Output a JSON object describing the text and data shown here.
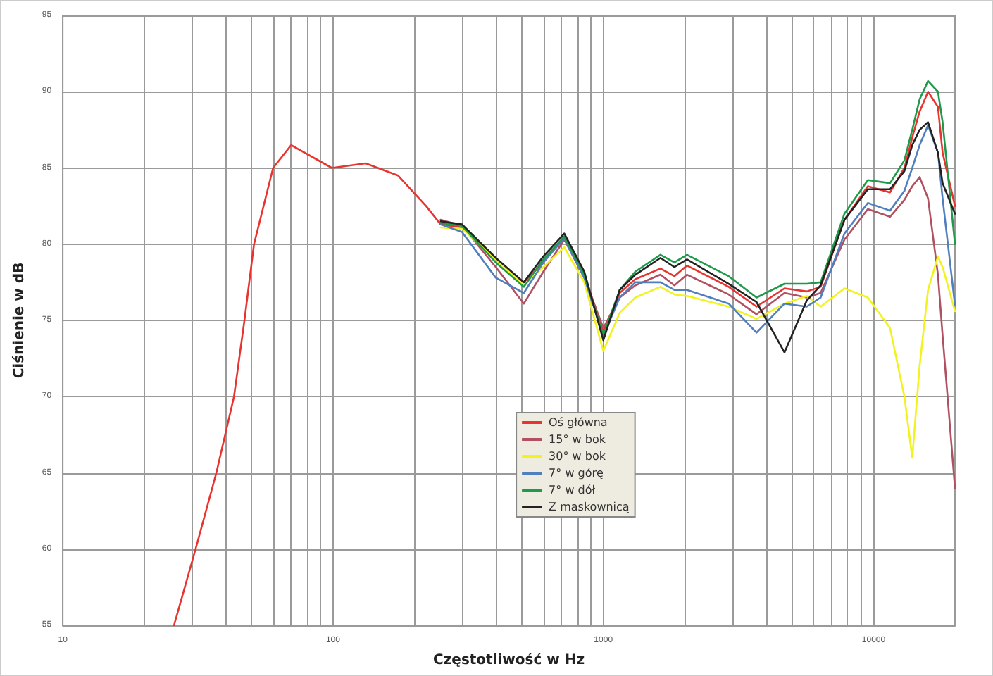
{
  "chart_data": {
    "type": "line",
    "xlabel": "Częstotliwość w Hz",
    "ylabel": "Ciśnienie w dB",
    "log": "x",
    "grid": true,
    "legend": "bottom",
    "marker": "none",
    "line_style": "solid",
    "xlim": [
      10,
      20000
    ],
    "xticks": [
      10,
      {
        "value": 20,
        "label": null
      },
      {
        "value": 30,
        "label": null
      },
      {
        "value": 40,
        "label": null
      },
      {
        "value": 50,
        "label": null
      },
      {
        "value": 60,
        "label": null
      },
      {
        "value": 70,
        "label": null
      },
      {
        "value": 80,
        "label": null
      },
      {
        "value": 90,
        "label": null
      },
      100,
      {
        "value": 200,
        "label": null
      },
      {
        "value": 300,
        "label": null
      },
      {
        "value": 400,
        "label": null
      },
      {
        "value": 500,
        "label": null
      },
      {
        "value": 600,
        "label": null
      },
      {
        "value": 700,
        "label": null
      },
      {
        "value": 800,
        "label": null
      },
      {
        "value": 900,
        "label": null
      },
      1000,
      {
        "value": 2000,
        "label": null
      },
      {
        "value": 3000,
        "label": null
      },
      {
        "value": 4000,
        "label": null
      },
      {
        "value": 5000,
        "label": null
      },
      {
        "value": 6000,
        "label": null
      },
      {
        "value": 7000,
        "label": null
      },
      {
        "value": 8000,
        "label": null
      },
      {
        "value": 9000,
        "label": null
      },
      10000,
      {
        "value": 20000,
        "label": null
      }
    ],
    "ylim": [
      55,
      95
    ],
    "yticks": [
      55,
      60,
      65,
      70,
      75,
      80,
      85,
      90,
      95
    ],
    "x": [
      250,
      300,
      400,
      508,
      600,
      717,
      850,
      1000,
      1150,
      1313,
      1627,
      1832,
      2040,
      2910,
      3690,
      4680,
      5660,
      6370,
      7800,
      9520,
      11500,
      13000,
      13900,
      14800,
      15900,
      17300,
      18000,
      20000
    ],
    "series": [
      {
        "name": "Oś główna",
        "color": "#e8332f",
        "x": [
          25.8,
          31,
          37,
          43,
          47,
          51,
          60,
          70,
          99,
          132,
          174,
          221,
          250,
          300,
          400,
          508,
          600,
          717,
          850,
          1000,
          1150,
          1313,
          1627,
          1832,
          2040,
          2910,
          3690,
          4680,
          5660,
          6370,
          7800,
          9520,
          11500,
          13000,
          13900,
          14800,
          15900,
          17300,
          18000,
          20000
        ],
        "values": [
          55,
          60,
          65,
          70,
          75,
          80,
          85,
          86.5,
          85,
          85.3,
          84.5,
          82.5,
          81.3,
          81.1,
          79,
          77.5,
          78.8,
          80.5,
          78,
          74.3,
          76.8,
          77.7,
          78.4,
          77.9,
          78.6,
          77.2,
          75.9,
          77.1,
          76.9,
          77.2,
          81.6,
          83.8,
          83.4,
          85,
          87,
          88.7,
          90,
          89,
          86,
          82.5
        ]
      },
      {
        "name": "15° w bok",
        "color": "#b05060",
        "values": [
          81.6,
          81.2,
          78.5,
          76.1,
          78.2,
          80.3,
          77.8,
          74.5,
          76.5,
          77.3,
          78,
          77.3,
          78,
          76.7,
          75.4,
          76.8,
          76.5,
          76.8,
          80.3,
          82.3,
          81.8,
          82.9,
          83.8,
          84.4,
          83,
          78,
          74,
          64
        ]
      },
      {
        "name": "30° w bok",
        "color": "#f2f21e",
        "values": [
          81.1,
          81,
          79,
          77.3,
          78.5,
          79.8,
          77.5,
          73,
          75.5,
          76.5,
          77.2,
          76.7,
          76.6,
          75.9,
          75.1,
          76.1,
          76.6,
          75.9,
          77.1,
          76.5,
          74.5,
          70,
          66,
          72,
          77,
          79.2,
          78.5,
          75.6
        ]
      },
      {
        "name": "7° w górę",
        "color": "#4f7fbf",
        "values": [
          81.3,
          80.8,
          77.8,
          76.8,
          78.8,
          80.4,
          77.8,
          74,
          76.5,
          77.5,
          77.5,
          77,
          77,
          76.1,
          74.2,
          76.1,
          75.9,
          76.5,
          80.7,
          82.7,
          82.2,
          83.5,
          85,
          86.5,
          87.8,
          86,
          83,
          76
        ]
      },
      {
        "name": "7° w dół",
        "color": "#1f9a4a",
        "values": [
          81.4,
          81.2,
          78.8,
          77.2,
          79,
          80.5,
          78,
          74,
          77,
          78.2,
          79.3,
          78.8,
          79.3,
          77.9,
          76.5,
          77.4,
          77.4,
          77.5,
          82,
          84.2,
          84,
          85.5,
          87.5,
          89.5,
          90.7,
          90,
          88,
          80
        ]
      },
      {
        "name": "Z maskownicą",
        "color": "#222222",
        "values": [
          81.5,
          81.3,
          79.1,
          77.5,
          79.2,
          80.7,
          78.2,
          73.7,
          77,
          78,
          79.1,
          78.5,
          79,
          77.4,
          76.2,
          72.9,
          76.3,
          77.3,
          81.6,
          83.6,
          83.6,
          84.8,
          86.5,
          87.5,
          88,
          86,
          84,
          82
        ]
      }
    ]
  }
}
